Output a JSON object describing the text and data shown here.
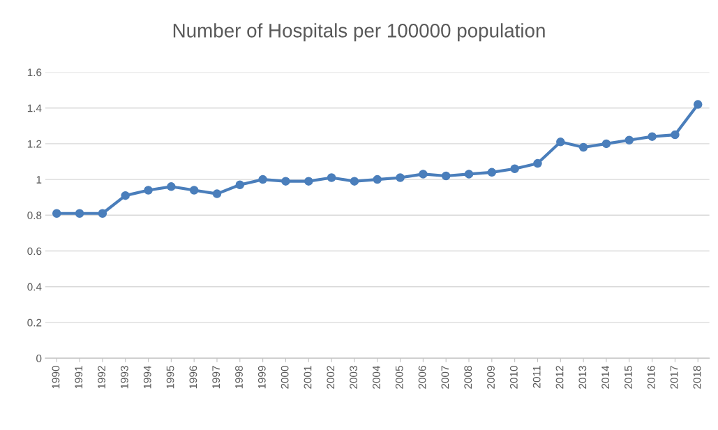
{
  "chart_data": {
    "type": "line",
    "title": "Number of Hospitals per 100000 population",
    "categories": [
      "1990",
      "1991",
      "1992",
      "1993",
      "1994",
      "1995",
      "1996",
      "1997",
      "1998",
      "1999",
      "2000",
      "2001",
      "2002",
      "2003",
      "2004",
      "2005",
      "2006",
      "2007",
      "2008",
      "2009",
      "2010",
      "2011",
      "2012",
      "2013",
      "2014",
      "2015",
      "2016",
      "2017",
      "2018"
    ],
    "series": [
      {
        "color": "#4a7ebb",
        "values": [
          0.81,
          0.81,
          0.81,
          0.91,
          0.94,
          0.96,
          0.94,
          0.92,
          0.97,
          1.0,
          0.99,
          0.99,
          1.01,
          0.99,
          1.0,
          1.01,
          1.03,
          1.02,
          1.03,
          1.04,
          1.06,
          1.09,
          1.21,
          1.18,
          1.2,
          1.22,
          1.24,
          1.25,
          1.42
        ]
      }
    ],
    "ylim": [
      0,
      1.6
    ],
    "yticks": [
      0,
      0.2,
      0.4,
      0.6,
      0.8,
      1,
      1.2,
      1.4,
      1.6
    ],
    "grid": "y",
    "marker": "circle",
    "line_style": "solid",
    "legend": false
  }
}
